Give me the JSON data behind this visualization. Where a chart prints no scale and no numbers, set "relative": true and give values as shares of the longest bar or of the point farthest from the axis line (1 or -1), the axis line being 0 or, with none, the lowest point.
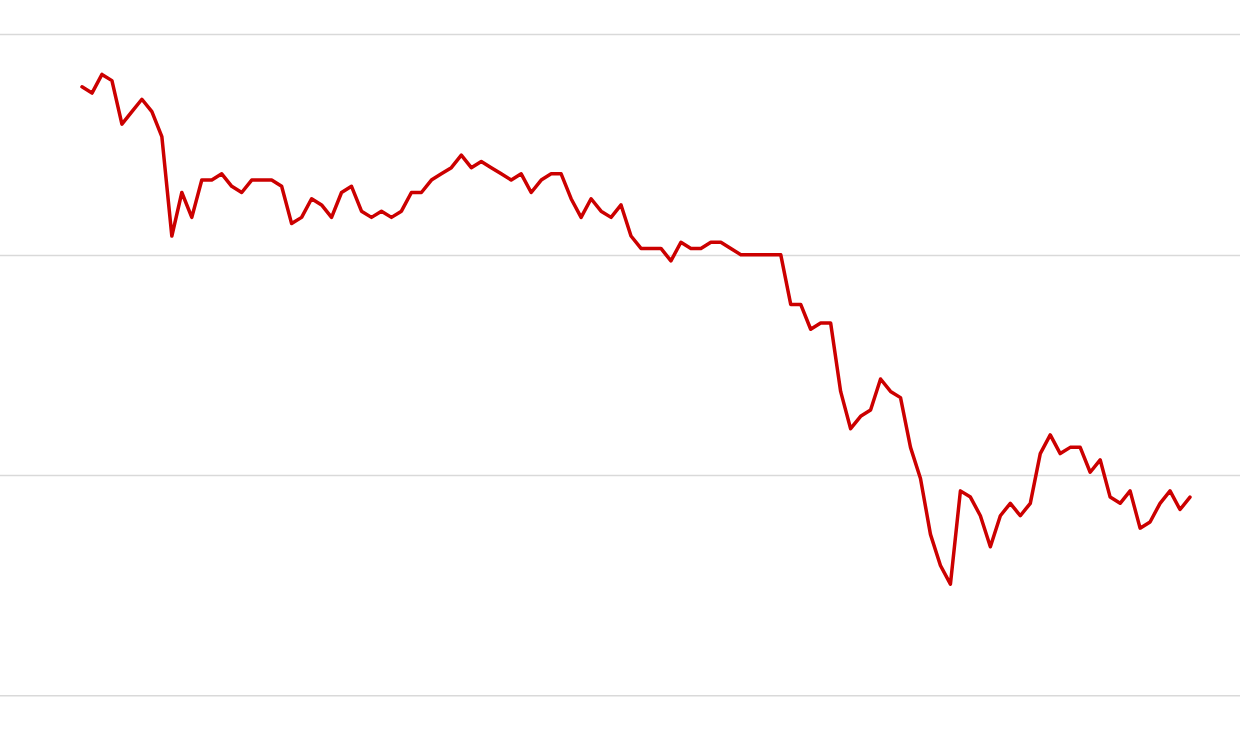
{
  "chart_data": {
    "type": "line",
    "relative": true,
    "legend": false,
    "marker": "none",
    "line_style": "solid",
    "ref_lines": [
      {
        "axis": "y",
        "value": 0.355,
        "color": "#d9d9d9"
      },
      {
        "axis": "y",
        "value": 0.71,
        "color": "#d9d9d9"
      },
      {
        "axis": "y",
        "value": 1.065,
        "color": "#d9d9d9"
      }
    ],
    "categories": [
      null,
      null,
      null,
      null,
      null,
      null,
      null,
      null,
      null,
      null,
      null,
      null,
      null,
      null,
      null,
      null,
      null,
      null,
      null,
      null,
      null,
      null,
      null,
      null,
      null,
      null,
      null,
      null,
      null,
      null,
      null,
      null,
      null,
      null,
      null,
      null,
      null,
      null,
      null,
      null,
      null,
      null,
      null,
      null,
      null,
      null,
      null,
      null,
      null,
      null,
      null,
      null,
      null,
      null,
      null,
      null,
      null,
      null,
      null,
      null,
      null,
      null,
      null,
      null,
      null,
      null,
      null,
      null,
      null,
      null,
      null,
      null,
      null,
      null,
      null,
      null,
      null,
      null,
      null,
      null,
      null,
      null,
      null,
      null,
      null,
      null,
      null,
      null,
      null,
      null,
      null,
      null,
      null,
      null,
      null,
      null,
      null,
      null,
      null,
      null,
      null,
      null,
      null,
      null,
      null,
      null,
      null,
      null,
      null,
      null,
      null,
      null
    ],
    "series": [
      {
        "color": "#cc0000",
        "values": [
          0.98,
          0.97,
          1,
          0.99,
          0.92,
          0.94,
          0.96,
          0.94,
          0.9,
          0.74,
          0.81,
          0.77,
          0.83,
          0.83,
          0.84,
          0.82,
          0.81,
          0.83,
          0.83,
          0.83,
          0.82,
          0.76,
          0.77,
          0.8,
          0.79,
          0.77,
          0.81,
          0.82,
          0.78,
          0.77,
          0.78,
          0.77,
          0.78,
          0.81,
          0.81,
          0.83,
          0.84,
          0.85,
          0.87,
          0.85,
          0.86,
          0.85,
          0.84,
          0.83,
          0.84,
          0.81,
          0.83,
          0.84,
          0.84,
          0.8,
          0.77,
          0.8,
          0.78,
          0.77,
          0.79,
          0.74,
          0.72,
          0.72,
          0.72,
          0.7,
          0.73,
          0.72,
          0.72,
          0.73,
          0.73,
          0.72,
          0.71,
          0.71,
          0.71,
          0.71,
          0.71,
          0.63,
          0.63,
          0.59,
          0.6,
          0.6,
          0.49,
          0.43,
          0.45,
          0.46,
          0.51,
          0.49,
          0.48,
          0.4,
          0.35,
          0.26,
          0.21,
          0.18,
          0.33,
          0.32,
          0.29,
          0.24,
          0.29,
          0.31,
          0.29,
          0.31,
          0.39,
          0.42,
          0.39,
          0.4,
          0.4,
          0.36,
          0.38,
          0.32,
          0.31,
          0.33,
          0.27,
          0.28,
          0.31,
          0.33,
          0.3,
          0.32
        ]
      }
    ]
  }
}
